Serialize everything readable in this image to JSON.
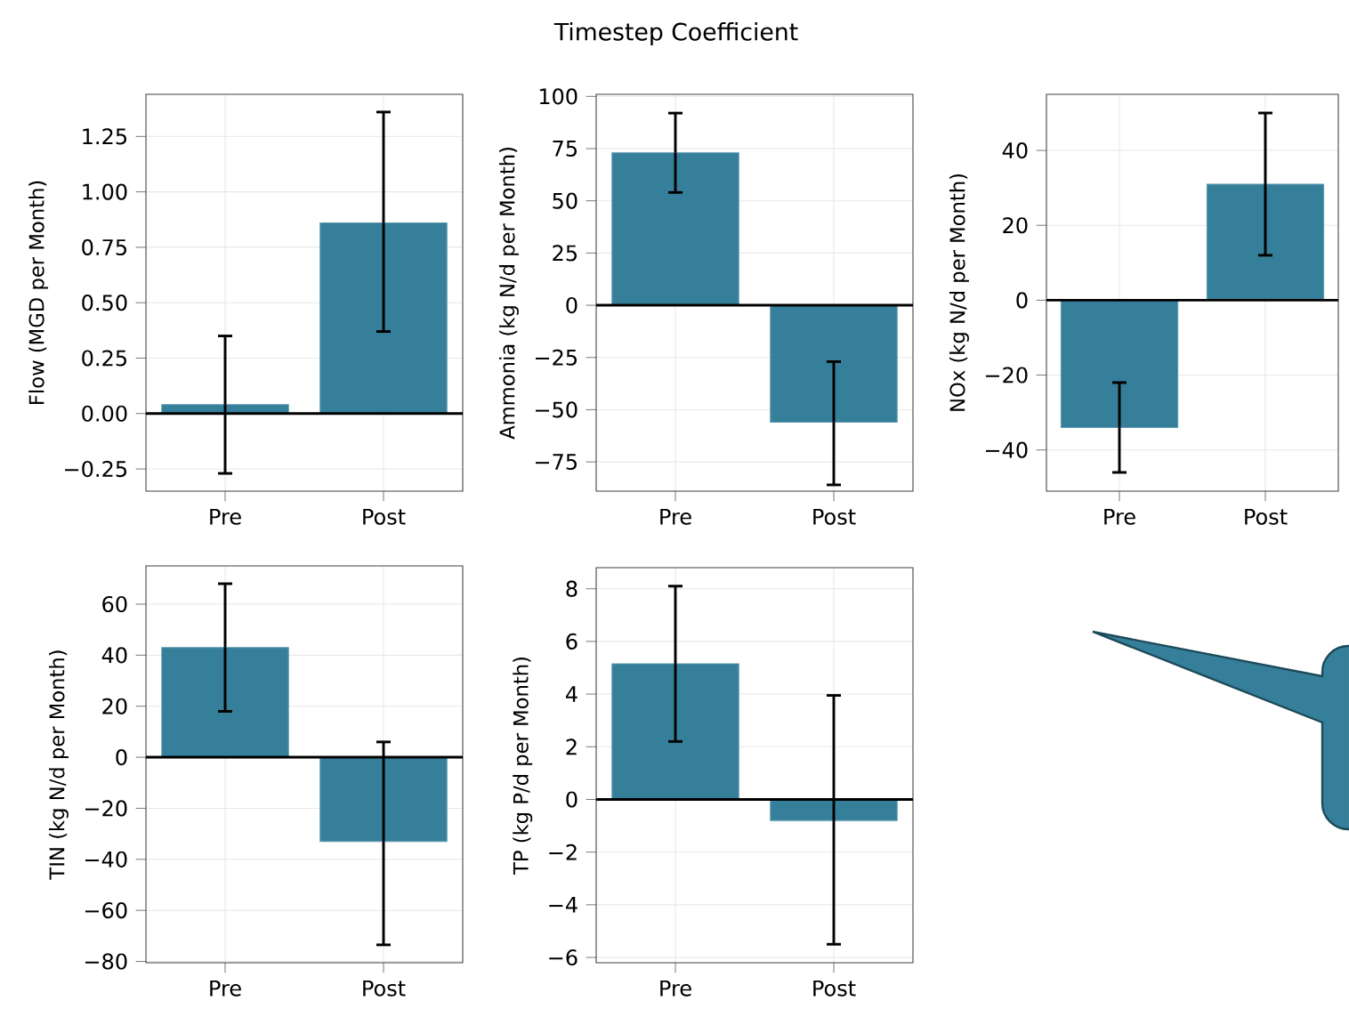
{
  "chart_data": [
    {
      "type": "bar",
      "categories": [
        "Pre",
        "Post"
      ],
      "values": [
        0.04,
        0.86
      ],
      "errors": [
        [
          -0.27,
          0.35
        ],
        [
          0.37,
          1.36
        ]
      ],
      "color": "#367f9a",
      "ylabel": "Flow (MGD per Month)",
      "ylim": [
        -0.35,
        1.44
      ],
      "yticks": [
        {
          "value": -0.25,
          "label": "−0.25"
        },
        {
          "value": 0,
          "label": "0.00"
        },
        {
          "value": 0.25,
          "label": "0.25"
        },
        {
          "value": 0.5,
          "label": "0.50"
        },
        {
          "value": 0.75,
          "label": "0.75"
        },
        {
          "value": 1.0,
          "label": "1.00"
        },
        1.25
      ],
      "grid": true,
      "ref_lines": [
        {
          "axis": "y",
          "value": 0,
          "color": "#000000"
        }
      ]
    },
    {
      "type": "bar",
      "title": "Timestep Coefficient",
      "categories": [
        "Pre",
        "Post"
      ],
      "values": [
        73,
        -56
      ],
      "errors": [
        [
          54,
          92
        ],
        [
          -86,
          -27
        ]
      ],
      "color": "#367f9a",
      "ylabel": "Ammonia (kg N/d per Month)",
      "ylim": [
        -89,
        101
      ],
      "yticks": [
        {
          "value": -75,
          "label": "−75"
        },
        {
          "value": -50,
          "label": "−50"
        },
        {
          "value": -25,
          "label": "−25"
        },
        0,
        25,
        50,
        75,
        100
      ],
      "grid": true,
      "ref_lines": [
        {
          "axis": "y",
          "value": 0,
          "color": "#000000"
        }
      ]
    },
    {
      "type": "bar",
      "categories": [
        "Pre",
        "Post"
      ],
      "values": [
        -34,
        31
      ],
      "errors": [
        [
          -46,
          -22
        ],
        [
          12,
          50
        ]
      ],
      "color": "#367f9a",
      "ylabel": "NOx (kg N/d per Month)",
      "ylim": [
        -51,
        55
      ],
      "yticks": [
        {
          "value": -40,
          "label": "−40"
        },
        {
          "value": -20,
          "label": "−20"
        },
        0,
        20,
        40
      ],
      "grid": true,
      "ref_lines": [
        {
          "axis": "y",
          "value": 0,
          "color": "#000000"
        }
      ]
    },
    {
      "type": "bar",
      "categories": [
        "Pre",
        "Post"
      ],
      "values": [
        43,
        -33
      ],
      "errors": [
        [
          18,
          68
        ],
        [
          -73.5,
          6
        ]
      ],
      "color": "#367f9a",
      "ylabel": "TIN (kg N/d per Month)",
      "ylim": [
        -80.5,
        75
      ],
      "yticks": [
        {
          "value": -80,
          "label": "−80"
        },
        {
          "value": -60,
          "label": "−60"
        },
        {
          "value": -40,
          "label": "−40"
        },
        {
          "value": -20,
          "label": "−20"
        },
        0,
        20,
        40,
        60
      ],
      "grid": true,
      "ref_lines": [
        {
          "axis": "y",
          "value": 0,
          "color": "#000000"
        }
      ]
    },
    {
      "type": "bar",
      "categories": [
        "Pre",
        "Post"
      ],
      "values": [
        5.15,
        -0.8
      ],
      "errors": [
        [
          2.2,
          8.1
        ],
        [
          -5.5,
          3.95
        ]
      ],
      "color": "#367f9a",
      "ylabel": "TP (kg P/d per Month)",
      "ylim": [
        -6.2,
        8.8
      ],
      "yticks": [
        {
          "value": -6,
          "label": "−6"
        },
        {
          "value": -4,
          "label": "−4"
        },
        {
          "value": -2,
          "label": "−2"
        },
        0,
        2,
        4,
        6,
        8
      ],
      "grid": true,
      "ref_lines": [
        {
          "axis": "y",
          "value": 0,
          "color": "#000000"
        }
      ]
    }
  ]
}
